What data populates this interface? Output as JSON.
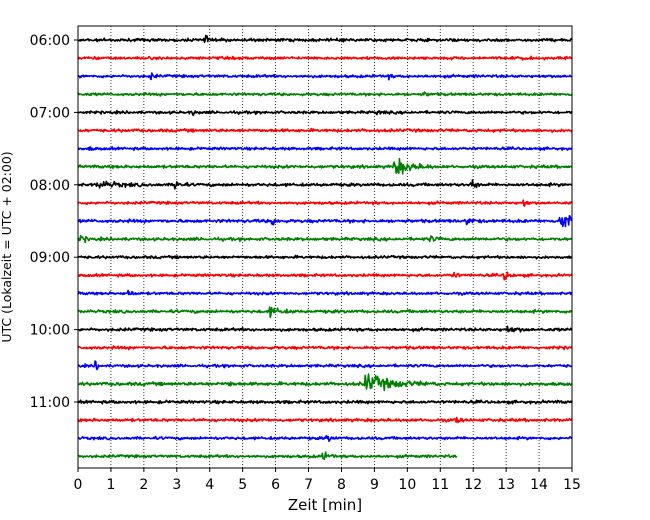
{
  "chart_data": {
    "type": "line",
    "title": "",
    "xlabel": "Zeit  [min]",
    "ylabel": "UTC (Lokalzeit = UTC + 02:00)",
    "xlim": [
      0,
      15
    ],
    "x_ticks": [
      0,
      1,
      2,
      3,
      4,
      5,
      6,
      7,
      8,
      9,
      10,
      11,
      12,
      13,
      14,
      15
    ],
    "y_tick_labels": [
      "06:00",
      "07:00",
      "08:00",
      "09:00",
      "10:00",
      "11:00"
    ],
    "grid": "vertical dotted",
    "color_cycle": [
      "#000000",
      "#ff0000",
      "#0000ff",
      "#008000"
    ],
    "series": [
      {
        "start": "06:00",
        "color": "#000000",
        "end_min": 15,
        "noise": 2.2,
        "events": [
          {
            "t": 3.85,
            "amp": 6,
            "dur": 0.4
          }
        ]
      },
      {
        "start": "06:15",
        "color": "#ff0000",
        "end_min": 15,
        "noise": 2.0,
        "events": [
          {
            "t": 13.5,
            "amp": 3,
            "dur": 0.3
          }
        ]
      },
      {
        "start": "06:30",
        "color": "#0000ff",
        "end_min": 15,
        "noise": 2.0,
        "events": [
          {
            "t": 2.2,
            "amp": 5,
            "dur": 0.3
          },
          {
            "t": 9.4,
            "amp": 3,
            "dur": 0.3
          }
        ]
      },
      {
        "start": "06:45",
        "color": "#008000",
        "end_min": 15,
        "noise": 2.0,
        "events": [
          {
            "t": 10.5,
            "amp": 3,
            "dur": 0.4
          }
        ]
      },
      {
        "start": "07:00",
        "color": "#000000",
        "end_min": 15,
        "noise": 2.0,
        "events": [
          {
            "t": 3.45,
            "amp": 4,
            "dur": 0.3
          },
          {
            "t": 9.1,
            "amp": 3,
            "dur": 0.3
          }
        ]
      },
      {
        "start": "07:15",
        "color": "#ff0000",
        "end_min": 15,
        "noise": 2.2,
        "events": []
      },
      {
        "start": "07:30",
        "color": "#0000ff",
        "end_min": 15,
        "noise": 2.0,
        "events": [
          {
            "t": 0.3,
            "amp": 3,
            "dur": 0.3
          }
        ]
      },
      {
        "start": "07:45",
        "color": "#008000",
        "end_min": 15,
        "noise": 2.2,
        "events": [
          {
            "t": 9.6,
            "amp": 14,
            "dur": 1.3
          }
        ]
      },
      {
        "start": "08:00",
        "color": "#000000",
        "end_min": 15,
        "noise": 2.2,
        "events": [
          {
            "t": 0.6,
            "amp": 5,
            "dur": 1.6
          },
          {
            "t": 2.95,
            "amp": 10,
            "dur": 0.4
          },
          {
            "t": 11.95,
            "amp": 9,
            "dur": 0.3
          }
        ]
      },
      {
        "start": "08:15",
        "color": "#ff0000",
        "end_min": 15,
        "noise": 2.0,
        "events": [
          {
            "t": 13.55,
            "amp": 9,
            "dur": 0.2
          }
        ]
      },
      {
        "start": "08:30",
        "color": "#0000ff",
        "end_min": 15,
        "noise": 2.4,
        "events": [
          {
            "t": 5.9,
            "amp": 7,
            "dur": 0.3
          },
          {
            "t": 11.8,
            "amp": 6,
            "dur": 0.4
          },
          {
            "t": 14.6,
            "amp": 16,
            "dur": 1.0
          }
        ]
      },
      {
        "start": "08:45",
        "color": "#008000",
        "end_min": 15,
        "noise": 2.2,
        "events": [
          {
            "t": 0.1,
            "amp": 5,
            "dur": 0.4
          },
          {
            "t": 10.7,
            "amp": 4,
            "dur": 0.4
          }
        ]
      },
      {
        "start": "09:00",
        "color": "#000000",
        "end_min": 15,
        "noise": 2.0,
        "events": []
      },
      {
        "start": "09:15",
        "color": "#ff0000",
        "end_min": 15,
        "noise": 2.0,
        "events": [
          {
            "t": 11.4,
            "amp": 8,
            "dur": 0.2
          },
          {
            "t": 12.95,
            "amp": 11,
            "dur": 0.3
          }
        ]
      },
      {
        "start": "09:30",
        "color": "#0000ff",
        "end_min": 15,
        "noise": 2.0,
        "events": [
          {
            "t": 1.5,
            "amp": 5,
            "dur": 0.4
          }
        ]
      },
      {
        "start": "09:45",
        "color": "#008000",
        "end_min": 15,
        "noise": 2.2,
        "events": [
          {
            "t": 5.8,
            "amp": 7,
            "dur": 0.8
          }
        ]
      },
      {
        "start": "10:00",
        "color": "#000000",
        "end_min": 15,
        "noise": 2.2,
        "events": [
          {
            "t": 13.0,
            "amp": 5,
            "dur": 0.8
          }
        ]
      },
      {
        "start": "10:15",
        "color": "#ff0000",
        "end_min": 15,
        "noise": 2.2,
        "events": []
      },
      {
        "start": "10:30",
        "color": "#0000ff",
        "end_min": 15,
        "noise": 2.0,
        "events": [
          {
            "t": 0.55,
            "amp": 11,
            "dur": 0.15
          }
        ]
      },
      {
        "start": "10:45",
        "color": "#008000",
        "end_min": 15,
        "noise": 2.4,
        "events": [
          {
            "t": 8.7,
            "amp": 14,
            "dur": 2.2
          },
          {
            "t": 4.6,
            "amp": 4,
            "dur": 0.2
          }
        ]
      },
      {
        "start": "11:00",
        "color": "#000000",
        "end_min": 15,
        "noise": 2.2,
        "events": []
      },
      {
        "start": "11:15",
        "color": "#ff0000",
        "end_min": 15,
        "noise": 2.2,
        "events": [
          {
            "t": 11.5,
            "amp": 5,
            "dur": 0.3
          }
        ]
      },
      {
        "start": "11:30",
        "color": "#0000ff",
        "end_min": 15,
        "noise": 2.0,
        "events": [
          {
            "t": 7.55,
            "amp": 6,
            "dur": 0.3
          }
        ]
      },
      {
        "start": "11:45",
        "color": "#008000",
        "end_min": 11.5,
        "noise": 2.0,
        "events": [
          {
            "t": 7.4,
            "amp": 7,
            "dur": 0.5
          }
        ]
      }
    ]
  }
}
